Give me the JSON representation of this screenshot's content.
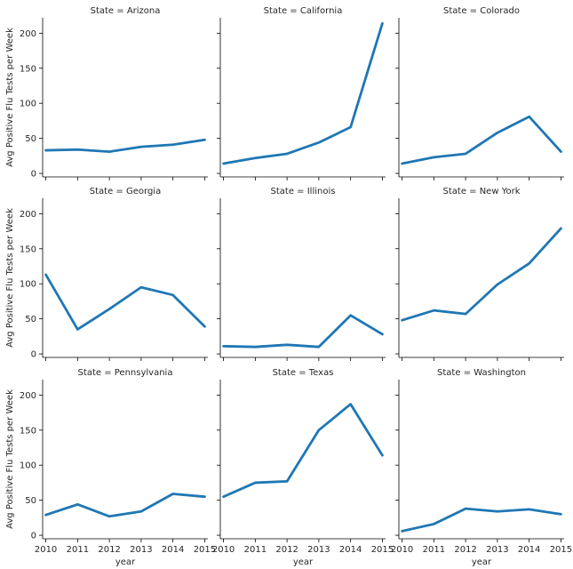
{
  "chart_data": {
    "type": "line",
    "facet_label_prefix": "State = ",
    "xlabel": "year",
    "ylabel": "Avg Positive Flu Tests per Week",
    "x": [
      2010,
      2011,
      2012,
      2013,
      2014,
      2015
    ],
    "xlim": [
      2009.9,
      2015.1
    ],
    "ylim": [
      -5,
      222
    ],
    "yticks": [
      0,
      50,
      100,
      150,
      200
    ],
    "grid": false,
    "line_color": "#1f77b4",
    "facets": [
      {
        "state": "Arizona",
        "title": "State = Arizona",
        "values": [
          33,
          34,
          31,
          38,
          41,
          48
        ]
      },
      {
        "state": "California",
        "title": "State = California",
        "values": [
          14,
          22,
          28,
          44,
          66,
          214
        ]
      },
      {
        "state": "Colorado",
        "title": "State = Colorado",
        "values": [
          14,
          23,
          28,
          58,
          81,
          31
        ]
      },
      {
        "state": "Georgia",
        "title": "State = Georgia",
        "values": [
          113,
          35,
          64,
          95,
          84,
          39
        ]
      },
      {
        "state": "Illinois",
        "title": "State = Illinois",
        "values": [
          11,
          10,
          13,
          10,
          55,
          28
        ]
      },
      {
        "state": "New York",
        "title": "State = New York",
        "values": [
          48,
          62,
          57,
          99,
          129,
          179
        ]
      },
      {
        "state": "Pennsylvania",
        "title": "State = Pennsylvania",
        "values": [
          29,
          44,
          27,
          34,
          59,
          55
        ]
      },
      {
        "state": "Texas",
        "title": "State = Texas",
        "values": [
          55,
          75,
          77,
          150,
          187,
          114
        ]
      },
      {
        "state": "Washington",
        "title": "State = Washington",
        "values": [
          6,
          16,
          38,
          34,
          37,
          30
        ]
      }
    ]
  }
}
